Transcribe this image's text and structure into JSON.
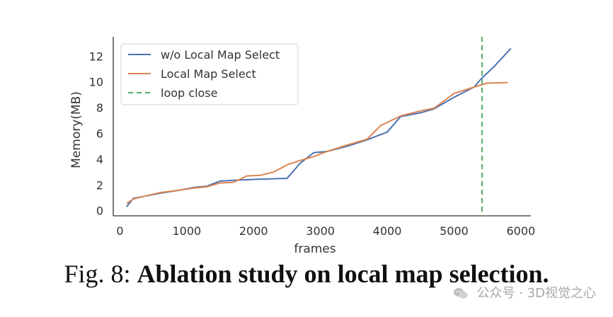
{
  "chart_data": {
    "type": "line",
    "xlabel": "frames",
    "ylabel": "Memory(MB)",
    "xlim": [
      -100,
      6150
    ],
    "ylim": [
      -0.4,
      13.5
    ],
    "xticks": [
      0,
      1000,
      2000,
      3000,
      4000,
      5000,
      6000
    ],
    "yticks": [
      0,
      2,
      4,
      6,
      8,
      10,
      12
    ],
    "grid": false,
    "legend_position": "top-left",
    "series": [
      {
        "name": "w/o Local Map Select",
        "color": "#4c72b0",
        "style": "solid",
        "x": [
          100,
          200,
          350,
          600,
          900,
          1100,
          1300,
          1500,
          1700,
          1900,
          2100,
          2200,
          2400,
          2500,
          2700,
          2900,
          3100,
          3400,
          3700,
          4000,
          4200,
          4500,
          4700,
          5000,
          5300,
          5400,
          5600,
          5850
        ],
        "y": [
          0.3,
          0.95,
          1.1,
          1.35,
          1.6,
          1.8,
          1.9,
          2.3,
          2.35,
          2.4,
          2.45,
          2.45,
          2.5,
          2.5,
          3.7,
          4.5,
          4.6,
          5.0,
          5.5,
          6.1,
          7.3,
          7.6,
          7.9,
          8.8,
          9.6,
          10.2,
          11.2,
          12.6
        ]
      },
      {
        "name": "Local Map Select",
        "color": "#dd8452",
        "style": "solid",
        "x": [
          100,
          200,
          350,
          600,
          900,
          1100,
          1300,
          1500,
          1700,
          1900,
          2100,
          2300,
          2500,
          2700,
          2900,
          3100,
          3400,
          3700,
          3900,
          4200,
          4500,
          4700,
          5000,
          5300,
          5500,
          5800
        ],
        "y": [
          0.55,
          0.9,
          1.1,
          1.4,
          1.6,
          1.75,
          1.85,
          2.15,
          2.2,
          2.7,
          2.75,
          3.0,
          3.55,
          3.9,
          4.2,
          4.6,
          5.1,
          5.55,
          6.6,
          7.35,
          7.75,
          7.95,
          9.1,
          9.6,
          9.9,
          9.95
        ]
      },
      {
        "name": "loop close",
        "color": "#55a868",
        "style": "dashed",
        "vline_x": 5420
      }
    ]
  },
  "caption": {
    "prefix": "Fig. 8:",
    "bold": "Ablation study on local map selection."
  },
  "watermark": {
    "text": "公众号 · 3D视觉之心"
  }
}
